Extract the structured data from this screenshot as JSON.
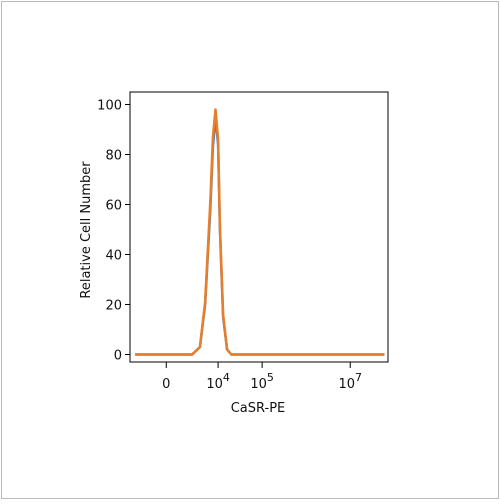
{
  "chart_data": {
    "type": "line",
    "xlabel": "CaSR-PE",
    "ylabel": "Relative Cell Number",
    "xscale": "biexponential",
    "linear_limit": 10000,
    "xlim": [
      -7000,
      72000000
    ],
    "ylim": [
      -3,
      105
    ],
    "xticks": [
      0,
      {
        "value": 10000,
        "label": "10",
        "exponent": "4"
      },
      {
        "value": 100000,
        "label": "10",
        "exponent": "5"
      },
      {
        "value": 10000000,
        "label": "10",
        "exponent": "7"
      }
    ],
    "yticks": [
      0,
      20,
      40,
      60,
      80,
      100
    ],
    "series": [
      {
        "color": "#4a7fb5",
        "x": [
          -6000,
          0,
          5000,
          6500,
          7500,
          8500,
          9000,
          9500,
          10000,
          11000,
          13000,
          16000,
          20000,
          1000000,
          60000000
        ],
        "values": [
          0,
          0,
          0,
          3,
          20,
          58,
          83,
          95,
          84,
          50,
          15,
          2,
          0,
          0,
          0
        ]
      },
      {
        "color": "#e87d2a",
        "x": [
          -6000,
          0,
          5000,
          6500,
          7500,
          8500,
          9000,
          9500,
          10000,
          11000,
          13000,
          16000,
          20000,
          1000000,
          60000000
        ],
        "values": [
          0,
          0,
          0,
          3,
          21,
          61,
          87,
          98,
          86,
          51,
          16,
          2,
          0,
          0,
          0
        ]
      }
    ]
  }
}
